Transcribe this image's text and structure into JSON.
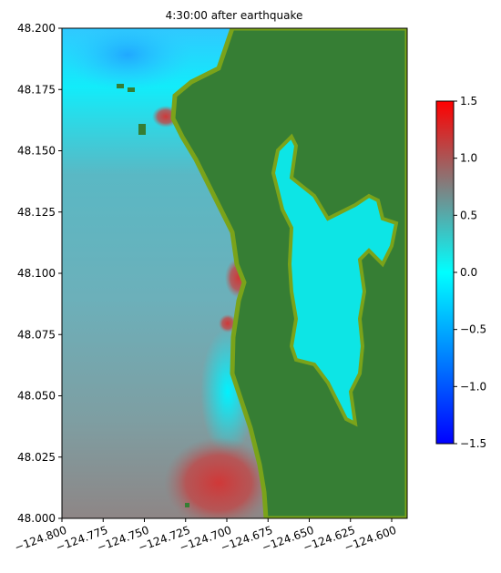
{
  "chart_data": {
    "type": "heatmap",
    "title": "4:30:00 after earthquake",
    "xlim": [
      -124.8,
      -124.5906
    ],
    "ylim": [
      48.0,
      48.2
    ],
    "xticks": [
      {
        "value": -124.8,
        "label": "−124.800"
      },
      {
        "value": -124.775,
        "label": "−124.775"
      },
      {
        "value": -124.75,
        "label": "−124.750"
      },
      {
        "value": -124.725,
        "label": "−124.725"
      },
      {
        "value": -124.7,
        "label": "−124.700"
      },
      {
        "value": -124.675,
        "label": "−124.675"
      },
      {
        "value": -124.65,
        "label": "−124.650"
      },
      {
        "value": -124.625,
        "label": "−124.625"
      },
      {
        "value": -124.6,
        "label": "−124.600"
      }
    ],
    "yticks": [
      {
        "value": 48.0,
        "label": "48.000"
      },
      {
        "value": 48.025,
        "label": "48.025"
      },
      {
        "value": 48.05,
        "label": "48.050"
      },
      {
        "value": 48.075,
        "label": "48.075"
      },
      {
        "value": 48.1,
        "label": "48.100"
      },
      {
        "value": 48.125,
        "label": "48.125"
      },
      {
        "value": 48.15,
        "label": "48.150"
      },
      {
        "value": 48.175,
        "label": "48.175"
      },
      {
        "value": 48.2,
        "label": "48.200"
      }
    ],
    "colorbar": {
      "lim": [
        -1.5,
        1.5
      ],
      "colors": [
        "#0000ff",
        "#0080ff",
        "#00ffff",
        "#808080",
        "#ff0000"
      ],
      "ticks": [
        {
          "value": -1.5,
          "label": "−1.5"
        },
        {
          "value": -1.0,
          "label": "−1.0"
        },
        {
          "value": -0.5,
          "label": "−0.5"
        },
        {
          "value": 0,
          "label": "0.0"
        },
        0.5,
        {
          "value": 1.0,
          "label": "1.0"
        },
        1.5
      ]
    }
  }
}
